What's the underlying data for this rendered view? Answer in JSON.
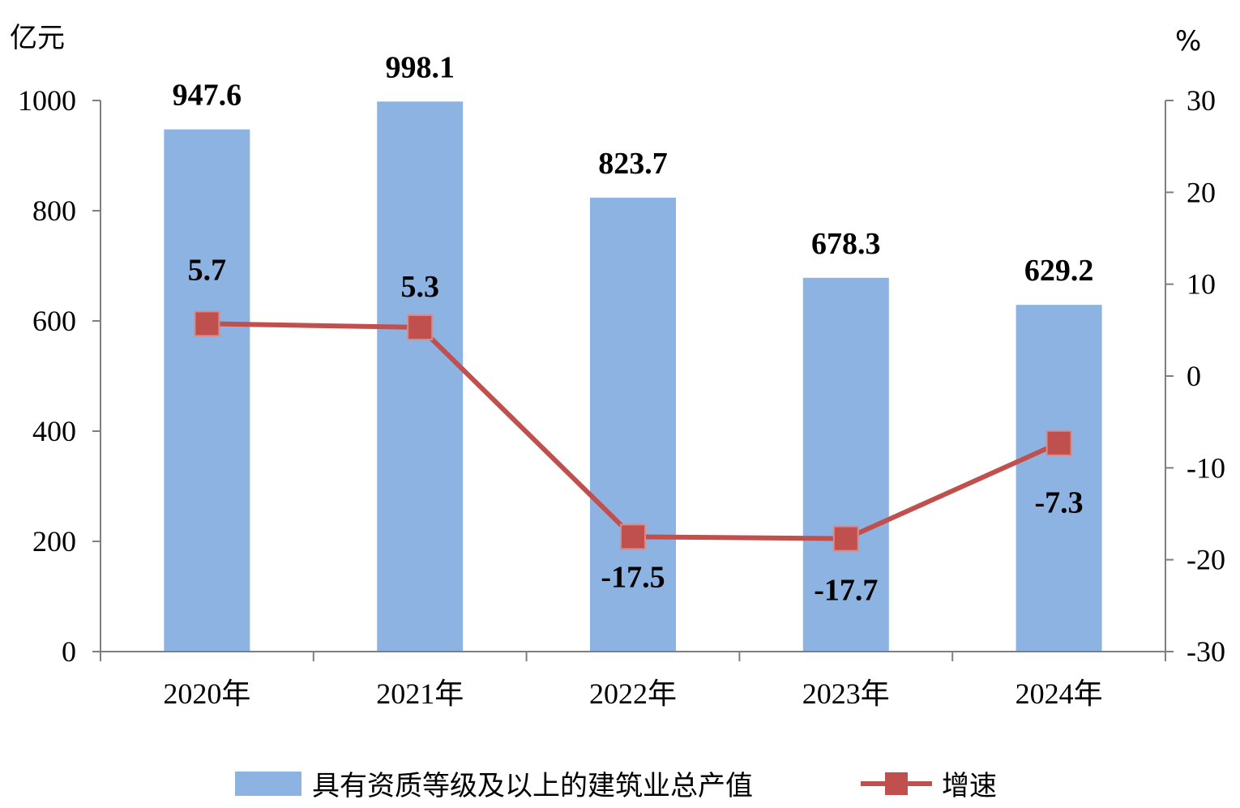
{
  "chart_data": {
    "type": "bar+line",
    "categories": [
      "2020年",
      "2021年",
      "2022年",
      "2023年",
      "2024年"
    ],
    "series": [
      {
        "name": "具有资质等级及以上的建筑业总产值",
        "type": "bar",
        "axis": "left",
        "values": [
          947.6,
          998.1,
          823.7,
          678.3,
          629.2
        ],
        "labels": [
          "947.6",
          "998.1",
          "823.7",
          "678.3",
          "629.2"
        ],
        "color": "#8DB3E2"
      },
      {
        "name": "增速",
        "type": "line",
        "axis": "right",
        "values": [
          5.7,
          5.3,
          -17.5,
          -17.7,
          -7.3
        ],
        "labels": [
          "5.7",
          "5.3",
          "-17.5",
          "-17.7",
          "-7.3"
        ],
        "color": "#C0504D"
      }
    ],
    "left_axis": {
      "unit": "亿元",
      "ylim": [
        0,
        1000
      ],
      "ticks": [
        0,
        200,
        400,
        600,
        800,
        1000
      ],
      "tick_labels": [
        "0",
        "200",
        "400",
        "600",
        "800",
        "1000"
      ]
    },
    "right_axis": {
      "unit": "%",
      "ylim": [
        -30,
        30
      ],
      "ticks": [
        -30,
        -20,
        -10,
        0,
        10,
        20,
        30
      ],
      "tick_labels": [
        "-30",
        "-20",
        "-10",
        "0",
        "10",
        "20",
        "30"
      ]
    },
    "grid": false,
    "legend_position": "bottom"
  }
}
